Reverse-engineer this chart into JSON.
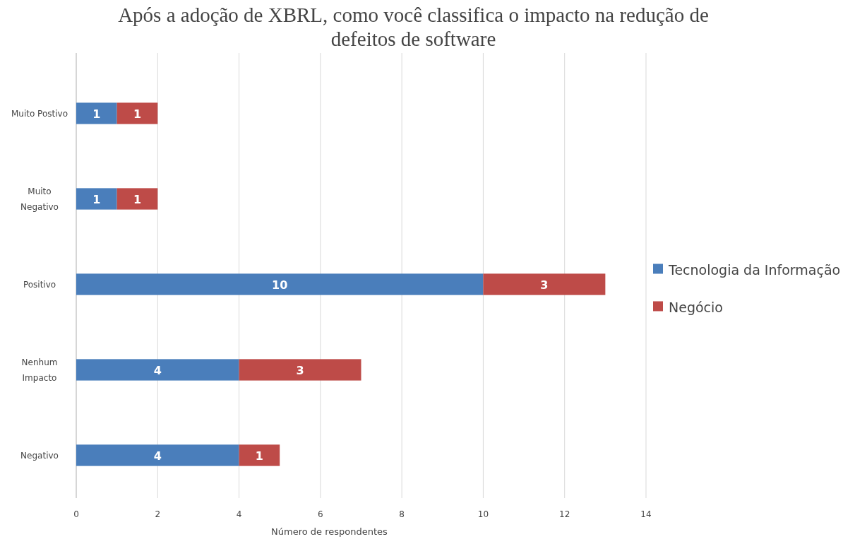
{
  "chart_data": {
    "type": "bar",
    "orientation": "horizontal",
    "stacked": true,
    "title": "Após a adoção de XBRL, como você classifica o impacto na redução de\ndefeitos de software",
    "xlabel": "Número de respondentes",
    "categories": [
      "Muito Postivo",
      "Muito\nNegativo",
      "Positivo",
      "Nenhum\nImpacto",
      "Negativo"
    ],
    "series": [
      {
        "name": "Tecnologia da Informação",
        "color": "#4a7ebb",
        "values": [
          1,
          1,
          10,
          4,
          4
        ]
      },
      {
        "name": "Negócio",
        "color": "#be4b48",
        "values": [
          1,
          1,
          3,
          3,
          1
        ]
      }
    ],
    "xlim": [
      0,
      14
    ],
    "xticks": [
      0,
      2,
      4,
      6,
      8,
      10,
      12,
      14
    ],
    "grid": "x",
    "legend": "right",
    "data_labels": true
  }
}
